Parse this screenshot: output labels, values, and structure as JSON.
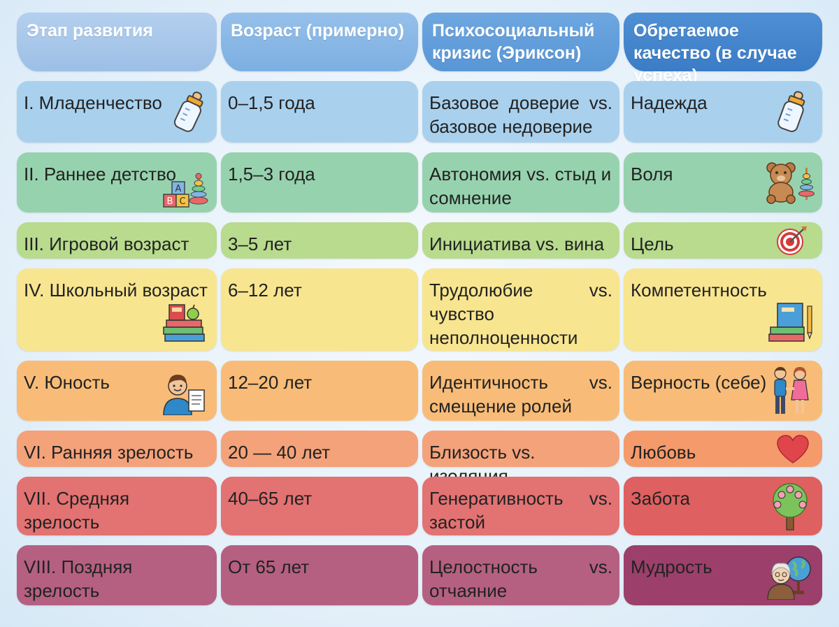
{
  "headers": [
    "Этап развития",
    "Возраст (примерно)",
    "Психосоциальный кризис (Эриксон)",
    "Обретаемое качество (в случае успеха)"
  ],
  "rows": [
    {
      "stage": "I. Младенчество",
      "age": "0–1,5 года",
      "crisis": "Базовое доверие vs. базовое недоверие",
      "quality": "Надежда",
      "stage_icon": "baby-bottle-icon",
      "quality_icon": "baby-bottle-icon"
    },
    {
      "stage": "II. Раннее детство",
      "age": "1,5–3 года",
      "crisis": "Автономия vs. стыд и сомнение",
      "quality": "Воля",
      "stage_icon": "abc-blocks-icon",
      "quality_icon": "teddy-bear-icon"
    },
    {
      "stage": "III. Игровой возраст",
      "age": "3–5 лет",
      "crisis": "Инициатива vs. вина",
      "quality": "Цель",
      "quality_icon": "target-icon"
    },
    {
      "stage": "IV. Школьный возраст",
      "age": "6–12 лет",
      "crisis": "Трудолюбие vs. чувство неполноценности",
      "quality": "Компетентность",
      "stage_icon": "books-apple-icon",
      "quality_icon": "books-pencil-icon"
    },
    {
      "stage": "V. Юность",
      "age": "12–20 лет",
      "crisis": "Идентичность vs. смещение ролей",
      "quality": "Верность (себе)",
      "stage_icon": "teen-student-icon",
      "quality_icon": "couple-icon"
    },
    {
      "stage": "VI. Ранняя зрелость",
      "age": "20 — 40 лет",
      "crisis": "Близость vs. изоляция",
      "quality": "Любовь",
      "quality_icon": "heart-icon"
    },
    {
      "stage": "VII. Средняя зрелость",
      "age": "40–65 лет",
      "crisis": "Генеративность vs. застой",
      "quality": "Забота",
      "quality_icon": "family-tree-icon"
    },
    {
      "stage": "VIII. Поздняя зрелость",
      "age": "От 65 лет",
      "crisis": "Целостность vs. отчаяние",
      "quality": "Мудрость",
      "quality_icon": "elder-globe-icon"
    }
  ]
}
